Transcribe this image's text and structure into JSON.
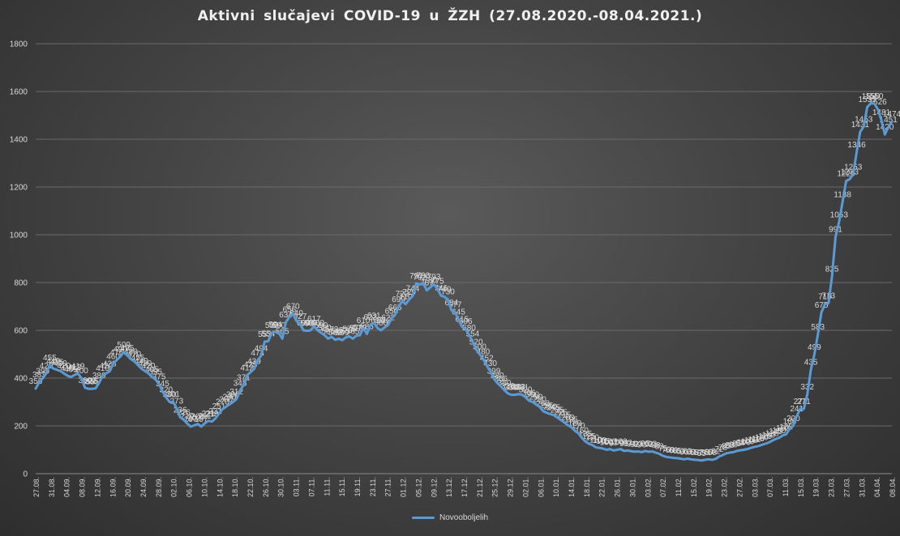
{
  "chart_data": {
    "type": "line",
    "title": "Aktivni  slučajevi  COVID-19  u  ŽZH  (27.08.2020.-08.04.2021.)",
    "xlabel": "",
    "ylabel": "",
    "ylim": [
      0,
      1800
    ],
    "yticks": [
      0,
      200,
      400,
      600,
      800,
      1000,
      1200,
      1400,
      1600,
      1800
    ],
    "grid": true,
    "legend": "bottom",
    "line_color": "#5b9bd5",
    "x_tick_labels": [
      "27.08.",
      "31.08.",
      "04.09.",
      "08.09.",
      "12.09.",
      "16.09.",
      "20.09.",
      "24.09.",
      "28.09.",
      "02.10.",
      "06.10.",
      "10.10.",
      "14.10.",
      "18.10.",
      "22.10.",
      "26.10.",
      "30.10.",
      "03.11.",
      "07.11.",
      "11.11.",
      "15.11.",
      "19.11.",
      "23.11.",
      "27.11.",
      "01.12.",
      "05.12.",
      "09.12.",
      "13.12.",
      "17.12.",
      "21.12.",
      "25.12.",
      "29.12.",
      "02.01.",
      "06.01.",
      "10.01.",
      "14.01.",
      "18.01.",
      "22.01.",
      "26.01.",
      "30.01.",
      "03.02.",
      "07.02.",
      "11.02.",
      "15.02.",
      "19.02.",
      "23.02.",
      "27.02.",
      "03.03.",
      "07.03.",
      "11.03.",
      "15.03.",
      "19.03.",
      "23.03.",
      "27.03.",
      "31.03.",
      "04.04.",
      "08.04."
    ],
    "series": [
      {
        "name": "Novooboljelih",
        "values": [
          356,
          383,
          399,
          420,
          455,
          440,
          435,
          430,
          420,
          410,
          405,
          413,
          419,
          400,
          360,
          355,
          355,
          357,
          380,
          410,
          420,
          428,
          460,
          476,
          490,
          509,
          495,
          480,
          470,
          455,
          440,
          430,
          420,
          405,
          395,
          375,
          345,
          320,
          300,
          301,
          273,
          236,
          226,
          210,
          197,
          202,
          208,
          197,
          211,
          221,
          218,
          231,
          251,
          270,
          280,
          290,
          300,
          312,
          348,
          371,
          412,
          425,
          439,
          474,
          494,
          553,
          554,
          590,
          594,
          590,
          565,
          634,
          656,
          670,
          640,
          627,
          600,
          598,
          600,
          617,
          600,
          590,
          580,
          565,
          573,
          560,
          565,
          559,
          570,
          575,
          565,
          578,
          579,
          610,
          585,
          623,
          631,
          610,
          600,
          612,
          622,
          650,
          665,
          699,
          722,
          710,
          729,
          744,
          797,
          792,
          798,
          767,
          780,
          793,
          775,
          746,
          740,
          730,
          684,
          677,
          645,
          615,
          606,
          580,
          554,
          520,
          500,
          480,
          452,
          430,
          399,
          380,
          366,
          350,
          336,
          330,
          330,
          333,
          331,
          320,
          306,
          300,
          290,
          280,
          262,
          255,
          250,
          245,
          235,
          225,
          215,
          203,
          195,
          180,
          170,
          150,
          135,
          125,
          120,
          110,
          108,
          105,
          100,
          103,
          97,
          100,
          103,
          95,
          97,
          94,
          92,
          93,
          90,
          95,
          92,
          93,
          88,
          83,
          75,
          70,
          68,
          66,
          65,
          63,
          60,
          63,
          60,
          58,
          57,
          55,
          58,
          60,
          58,
          62,
          72,
          78,
          85,
          88,
          90,
          95,
          98,
          100,
          103,
          108,
          112,
          115,
          120,
          125,
          130,
          138,
          145,
          150,
          160,
          165,
          188,
          200,
          241,
          271,
          271,
          332,
          435,
          499,
          583,
          675,
          710,
          713,
          825,
          991,
          1053,
          1138,
          1225,
          1233,
          1253,
          1346,
          1431,
          1453,
          1535,
          1550,
          1550,
          1526,
          1481,
          1420,
          1451,
          1474
        ]
      }
    ]
  }
}
